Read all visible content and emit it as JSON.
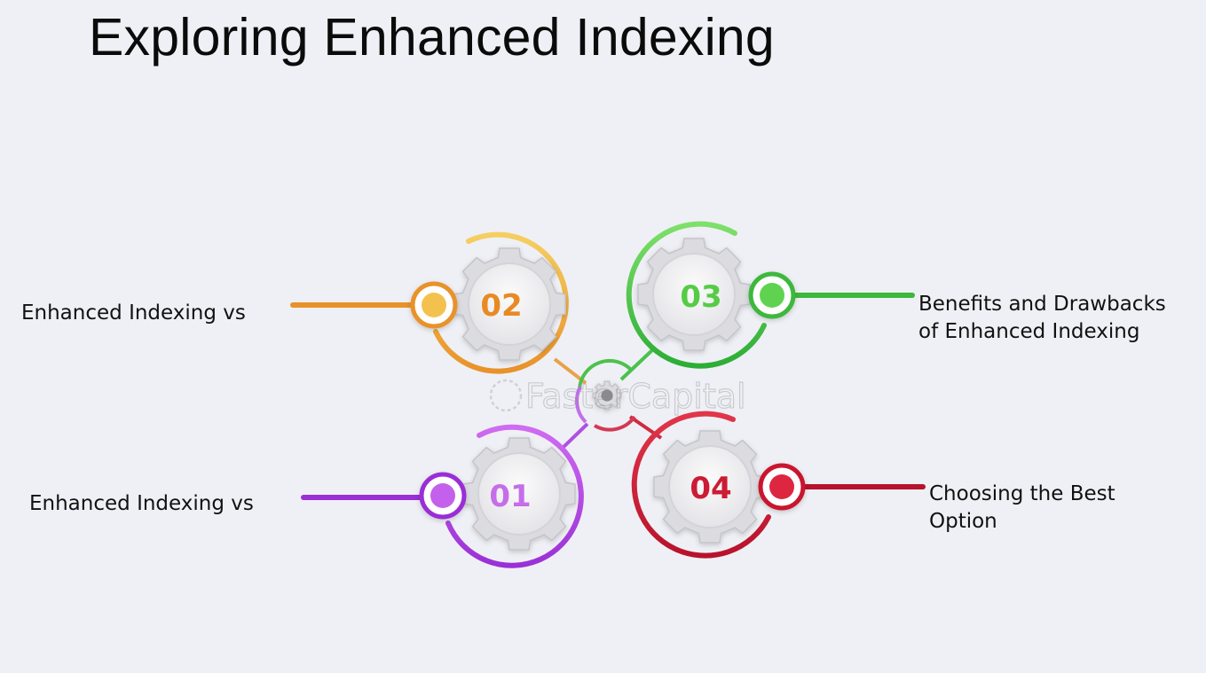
{
  "title": "Exploring Enhanced Indexing",
  "watermark": "FasterCapital",
  "steps": [
    {
      "number": "01",
      "label_lines": [
        "Enhanced Indexing vs"
      ],
      "color": "#a63ee0"
    },
    {
      "number": "02",
      "label_lines": [
        "Enhanced Indexing vs"
      ],
      "color": "#e8942a"
    },
    {
      "number": "03",
      "label_lines": [
        "Benefits and Drawbacks",
        "of Enhanced Indexing"
      ],
      "color": "#3cc23c"
    },
    {
      "number": "04",
      "label_lines": [
        "Choosing the Best",
        "Option"
      ],
      "color": "#cf1d38"
    }
  ]
}
